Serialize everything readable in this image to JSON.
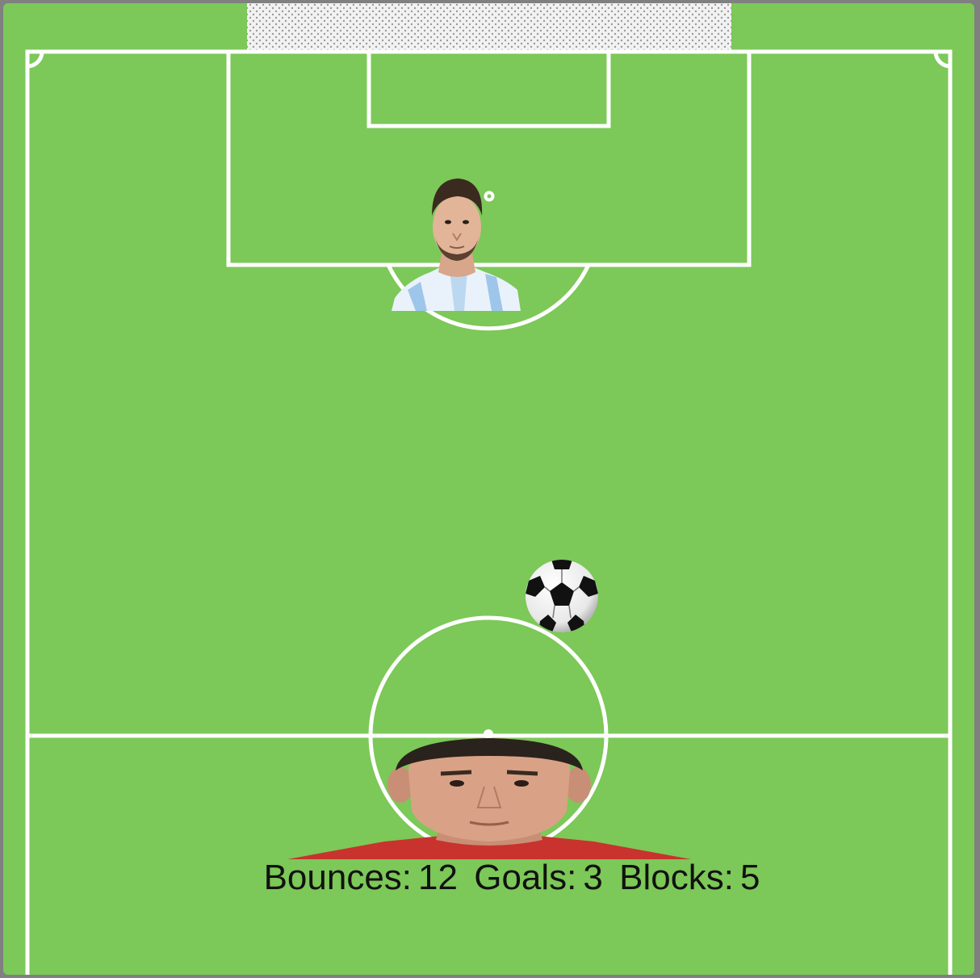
{
  "game": {
    "hud": {
      "bounces_label": "Bounces:",
      "bounces": "12",
      "goals_label": "Goals:",
      "goals": "3",
      "blocks_label": "Blocks:",
      "blocks": "5"
    },
    "players": {
      "goalkeeper": "goalkeeper-player-avatar",
      "striker": "striker-player-avatar"
    },
    "ball": "soccer-ball-icon",
    "colors": {
      "pitch": "#7cc858",
      "lines": "#ffffff",
      "net": "#e6e6e6",
      "goalkeeper_shirt": "#cfe3f5",
      "striker_shirt": "#c8332e"
    }
  }
}
